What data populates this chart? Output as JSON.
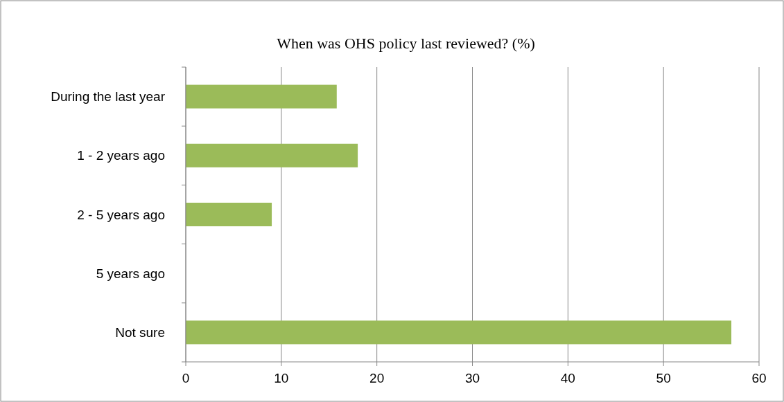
{
  "chart_data": {
    "type": "bar",
    "orientation": "horizontal",
    "title": "When was OHS policy last reviewed? (%)",
    "categories": [
      "During the last year",
      "1 - 2 years ago",
      "2 - 5 years ago",
      "5 years ago",
      "Not sure"
    ],
    "values": [
      15.8,
      18,
      9,
      0,
      57.1
    ],
    "color": "#9bbb59",
    "xlim": [
      0,
      60
    ],
    "xticks": [
      0,
      10,
      20,
      30,
      40,
      50,
      60
    ],
    "grid": "x"
  }
}
